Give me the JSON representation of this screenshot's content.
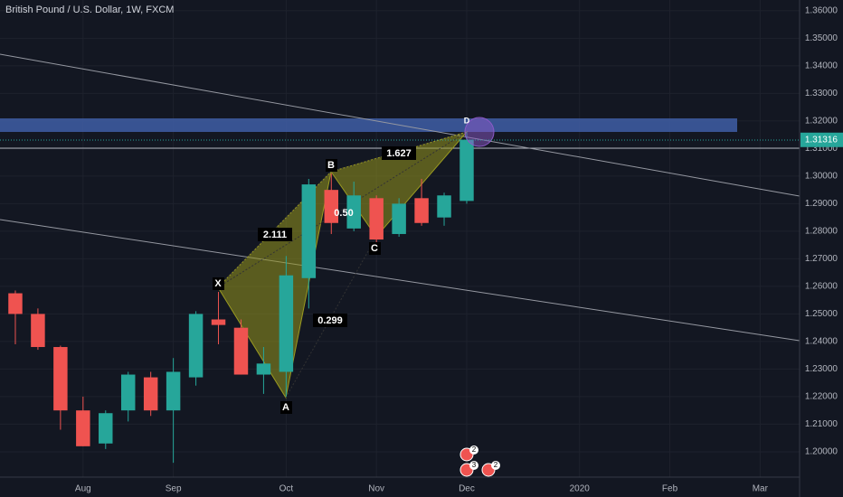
{
  "chart_data": {
    "type": "candlestick",
    "title": "British Pound / U.S. Dollar, 1W, FXCM",
    "x": [
      0,
      1,
      2,
      3,
      4,
      5,
      6,
      7,
      8,
      9,
      10,
      11,
      12,
      13,
      14,
      15,
      16,
      17,
      18,
      19,
      20
    ],
    "series": [
      {
        "up_color": "#26a69a",
        "down_color": "#ef5350",
        "open": [
          1.2575,
          1.25,
          1.238,
          1.215,
          1.203,
          1.215,
          1.227,
          1.215,
          1.227,
          1.248,
          1.245,
          1.228,
          1.229,
          1.263,
          1.295,
          1.281,
          1.292,
          1.279,
          1.292,
          1.285,
          1.291
        ],
        "high": [
          1.2585,
          1.252,
          1.2385,
          1.22,
          1.215,
          1.229,
          1.229,
          1.234,
          1.251,
          1.258,
          1.248,
          1.238,
          1.271,
          1.299,
          1.301,
          1.298,
          1.293,
          1.292,
          1.299,
          1.294,
          1.316
        ],
        "low": [
          1.239,
          1.237,
          1.208,
          1.202,
          1.201,
          1.211,
          1.213,
          1.196,
          1.224,
          1.239,
          1.228,
          1.221,
          1.22,
          1.252,
          1.279,
          1.28,
          1.276,
          1.278,
          1.282,
          1.282,
          1.29
        ],
        "close": [
          1.25,
          1.238,
          1.215,
          1.202,
          1.214,
          1.228,
          1.215,
          1.229,
          1.25,
          1.246,
          1.228,
          1.232,
          1.264,
          1.297,
          1.283,
          1.293,
          1.277,
          1.29,
          1.283,
          1.293,
          1.3132
        ]
      }
    ],
    "last_price": 1.31316,
    "last_price_color": "#26a69a",
    "xlim": [
      -0.68,
      34.75
    ],
    "ylim": [
      1.1908,
      1.3639
    ],
    "xticks": [
      {
        "value": 3,
        "label": "Aug"
      },
      {
        "value": 7,
        "label": "Sep"
      },
      {
        "value": 12,
        "label": "Oct"
      },
      {
        "value": 16,
        "label": "Nov"
      },
      {
        "value": 20,
        "label": "Dec"
      },
      {
        "value": 25,
        "label": "2020"
      },
      {
        "value": 29,
        "label": "Feb"
      },
      {
        "value": 33,
        "label": "Mar"
      }
    ],
    "yticks": [
      {
        "value": 1.2,
        "label": "1.20000"
      },
      {
        "value": 1.21,
        "label": "1.21000"
      },
      {
        "value": 1.22,
        "label": "1.22000"
      },
      {
        "value": 1.23,
        "label": "1.23000"
      },
      {
        "value": 1.24,
        "label": "1.24000"
      },
      {
        "value": 1.25,
        "label": "1.25000"
      },
      {
        "value": 1.26,
        "label": "1.26000"
      },
      {
        "value": 1.27,
        "label": "1.27000"
      },
      {
        "value": 1.28,
        "label": "1.28000"
      },
      {
        "value": 1.29,
        "label": "1.29000"
      },
      {
        "value": 1.3,
        "label": "1.30000"
      },
      {
        "value": 1.31,
        "label": "1.31000"
      },
      {
        "value": 1.32,
        "label": "1.32000"
      },
      {
        "value": 1.33,
        "label": "1.33000"
      },
      {
        "value": 1.34,
        "label": "1.34000"
      },
      {
        "value": 1.35,
        "label": "1.35000"
      },
      {
        "value": 1.36,
        "label": "1.36000"
      }
    ],
    "grid": true,
    "annotations": {
      "points": [
        "X",
        "A",
        "B",
        "C",
        "D"
      ],
      "ratios": [
        "2.111",
        "1.627",
        "0.299",
        "0.50"
      ],
      "events": [
        "2",
        "3",
        "2"
      ]
    }
  }
}
